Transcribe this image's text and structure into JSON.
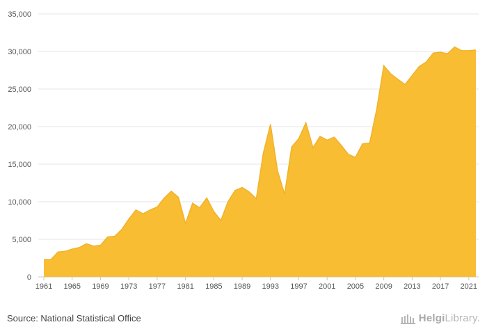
{
  "chart_data": {
    "type": "area",
    "title": "",
    "xlabel": "",
    "ylabel": "",
    "x": [
      1961,
      1962,
      1963,
      1964,
      1965,
      1966,
      1967,
      1968,
      1969,
      1970,
      1971,
      1972,
      1973,
      1974,
      1975,
      1976,
      1977,
      1978,
      1979,
      1980,
      1981,
      1982,
      1983,
      1984,
      1985,
      1986,
      1987,
      1988,
      1989,
      1990,
      1991,
      1992,
      1993,
      1994,
      1995,
      1996,
      1997,
      1998,
      1999,
      2000,
      2001,
      2002,
      2003,
      2004,
      2005,
      2006,
      2007,
      2008,
      2009,
      2010,
      2011,
      2012,
      2013,
      2014,
      2015,
      2016,
      2017,
      2018,
      2019,
      2020,
      2021,
      2022
    ],
    "series": [
      {
        "values": [
          2300,
          2300,
          3300,
          3400,
          3700,
          3900,
          4400,
          4100,
          4200,
          5300,
          5400,
          6300,
          7700,
          8900,
          8400,
          8900,
          9300,
          10500,
          11400,
          10600,
          7100,
          9800,
          9200,
          10500,
          8700,
          7500,
          10000,
          11500,
          11900,
          11300,
          10400,
          16500,
          20300,
          14100,
          11000,
          17300,
          18400,
          20500,
          17200,
          18700,
          18200,
          18600,
          17500,
          16300,
          15900,
          17700,
          17800,
          22300,
          28100,
          27000,
          26300,
          25600,
          26800,
          28000,
          28600,
          29800,
          29900,
          29700,
          30600,
          30100,
          30100,
          30200
        ]
      }
    ],
    "x_ticks": [
      "1961",
      "1965",
      "1969",
      "1973",
      "1977",
      "1981",
      "1985",
      "1989",
      "1993",
      "1997",
      "2001",
      "2005",
      "2009",
      "2013",
      "2017",
      "2021"
    ],
    "y_ticks": [
      "0",
      "5,000",
      "10,000",
      "15,000",
      "20,000",
      "25,000",
      "30,000",
      "35,000"
    ],
    "ylim": [
      0,
      35000
    ],
    "grid": true,
    "fill_color": "#f9bd34",
    "line_color": "#f0b228"
  },
  "footer": {
    "source": "Source: National Statistical Office",
    "brand_first": "Helgi",
    "brand_second": "Library."
  }
}
